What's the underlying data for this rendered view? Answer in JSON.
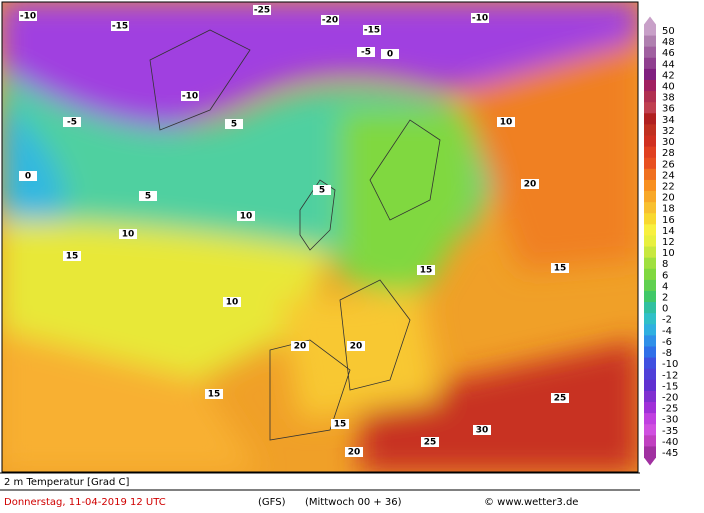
{
  "footer": {
    "title": "2 m Temperatur [Grad C]",
    "date": "Donnerstag, 11-04-2019  12 UTC",
    "model": "(GFS)",
    "run": "(Mittwoch 00 + 36)",
    "credit": "© www.wetter3.de"
  },
  "colorbar": {
    "labels": [
      "50",
      "48",
      "46",
      "44",
      "42",
      "40",
      "38",
      "36",
      "34",
      "32",
      "30",
      "28",
      "26",
      "24",
      "22",
      "20",
      "18",
      "16",
      "14",
      "12",
      "10",
      "8",
      "6",
      "4",
      "2",
      "0",
      "-2",
      "-4",
      "-6",
      "-8",
      "-10",
      "-12",
      "-15",
      "-20",
      "-25",
      "-30",
      "-35",
      "-40",
      "-45"
    ],
    "colors": [
      "#c8a0c8",
      "#b080b0",
      "#a060a0",
      "#904090",
      "#802080",
      "#a02060",
      "#b03050",
      "#c04050",
      "#b02020",
      "#c03020",
      "#d03020",
      "#e04020",
      "#e85020",
      "#f07020",
      "#f89020",
      "#f8a828",
      "#f8c030",
      "#f8d830",
      "#f8f040",
      "#e8f040",
      "#c8e840",
      "#a0e040",
      "#80d840",
      "#60d050",
      "#40c868",
      "#30c0a0",
      "#30c0c8",
      "#30b0e0",
      "#3090e8",
      "#3070e8",
      "#4050e0",
      "#5040d8",
      "#6030d0",
      "#8030d0",
      "#a030d8",
      "#c040e0",
      "#d050e0",
      "#c040c0",
      "#a030a0"
    ]
  },
  "map_labels": [
    "-10",
    "-15",
    "-25",
    "-20",
    "-10",
    "-15",
    "-10",
    "-5",
    "-5",
    "0",
    "5",
    "0",
    "10",
    "10",
    "5",
    "5",
    "10",
    "15",
    "15",
    "20",
    "10",
    "15",
    "20",
    "25",
    "25",
    "20",
    "30",
    "15",
    "15",
    "20"
  ]
}
